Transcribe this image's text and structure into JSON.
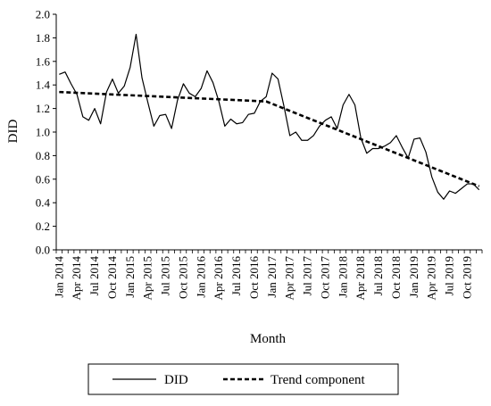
{
  "chart_data": {
    "type": "line",
    "title": "",
    "xlabel": "Month",
    "ylabel": "DID",
    "ylim": [
      0.0,
      2.0
    ],
    "y_ticks": [
      "0.0",
      "0.2",
      "0.4",
      "0.6",
      "0.8",
      "1.0",
      "1.2",
      "1.4",
      "1.6",
      "1.8",
      "2.0"
    ],
    "x_tick_labels": [
      "Jan 2014",
      "Apr 2014",
      "Jul 2014",
      "Oct 2014",
      "Jan 2015",
      "Apr 2015",
      "Jul 2015",
      "Oct 2015",
      "Jan 2016",
      "Apr 2016",
      "Jul 2016",
      "Oct 2016",
      "Jan 2017",
      "Apr 2017",
      "Jul 2017",
      "Oct 2017",
      "Jan 2018",
      "Apr 2018",
      "Jul 2018",
      "Oct 2018",
      "Jan 2019",
      "Apr 2019",
      "Jul 2019",
      "Oct 2019"
    ],
    "x_start": "2014-01",
    "x_end": "2019-12",
    "grid": false,
    "legend_position": "bottom",
    "series": [
      {
        "name": "DID",
        "style": "solid",
        "color": "#000000",
        "values": [
          1.49,
          1.51,
          1.41,
          1.32,
          1.13,
          1.1,
          1.2,
          1.07,
          1.34,
          1.45,
          1.33,
          1.39,
          1.55,
          1.83,
          1.46,
          1.25,
          1.05,
          1.14,
          1.15,
          1.03,
          1.27,
          1.41,
          1.33,
          1.3,
          1.37,
          1.52,
          1.42,
          1.26,
          1.05,
          1.11,
          1.07,
          1.08,
          1.15,
          1.16,
          1.26,
          1.3,
          1.5,
          1.45,
          1.22,
          0.97,
          1.0,
          0.93,
          0.93,
          0.97,
          1.05,
          1.1,
          1.13,
          1.03,
          1.23,
          1.32,
          1.23,
          0.95,
          0.82,
          0.86,
          0.86,
          0.88,
          0.91,
          0.97,
          0.87,
          0.78,
          0.94,
          0.95,
          0.83,
          0.62,
          0.49,
          0.43,
          0.5,
          0.48,
          0.52,
          0.56,
          0.56,
          0.51
        ]
      },
      {
        "name": "Trend component",
        "style": "dashed",
        "color": "#000000",
        "points": [
          {
            "x": "2014-01",
            "y": 1.34
          },
          {
            "x": "2016-12",
            "y": 1.26
          },
          {
            "x": "2019-12",
            "y": 0.54
          }
        ]
      }
    ]
  }
}
